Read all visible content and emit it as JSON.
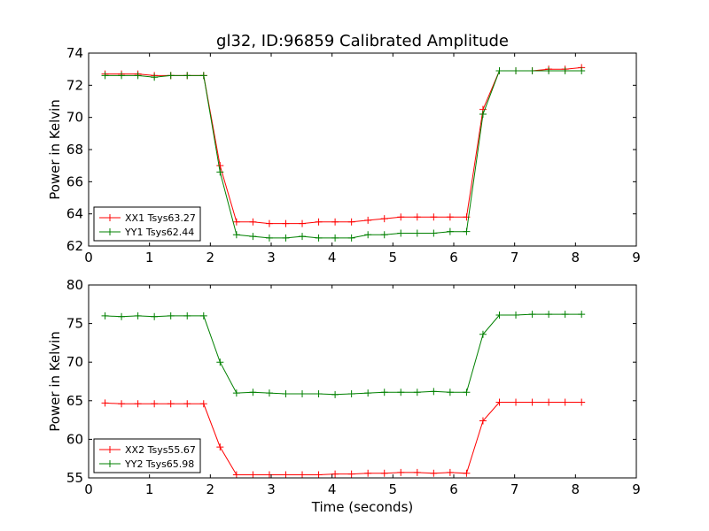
{
  "chart_data": {
    "title": "gl32, ID:96859 Calibrated Amplitude",
    "xlabel": "Time (seconds)",
    "colors": {
      "red": "#ff0000",
      "green": "#008000"
    },
    "panels": [
      {
        "type": "line",
        "ylabel": "Power in Kelvin",
        "xlim": [
          0,
          9
        ],
        "ylim": [
          62,
          74
        ],
        "xticks": [
          0,
          1,
          2,
          3,
          4,
          5,
          6,
          7,
          8,
          9
        ],
        "yticks": [
          62,
          64,
          66,
          68,
          70,
          72,
          74
        ],
        "x": [
          0.27,
          0.54,
          0.81,
          1.08,
          1.35,
          1.62,
          1.89,
          2.16,
          2.43,
          2.7,
          2.97,
          3.24,
          3.51,
          3.78,
          4.05,
          4.32,
          4.59,
          4.86,
          5.13,
          5.4,
          5.67,
          5.94,
          6.21,
          6.48,
          6.75,
          7.02,
          7.29,
          7.56,
          7.83,
          8.1
        ],
        "legend_position": "lower-left",
        "series": [
          {
            "name": "XX1 Tsys63.27",
            "color": "#ff0000",
            "values": [
              72.7,
              72.7,
              72.7,
              72.6,
              72.6,
              72.6,
              72.6,
              67.0,
              63.5,
              63.5,
              63.4,
              63.4,
              63.4,
              63.5,
              63.5,
              63.5,
              63.6,
              63.7,
              63.8,
              63.8,
              63.8,
              63.8,
              63.8,
              70.5,
              72.9,
              72.9,
              72.9,
              73.0,
              73.0,
              73.1
            ]
          },
          {
            "name": "YY1 Tsys62.44",
            "color": "#008000",
            "values": [
              72.6,
              72.6,
              72.6,
              72.5,
              72.6,
              72.6,
              72.6,
              66.6,
              62.7,
              62.6,
              62.5,
              62.5,
              62.6,
              62.5,
              62.5,
              62.5,
              62.7,
              62.7,
              62.8,
              62.8,
              62.8,
              62.9,
              62.9,
              70.2,
              72.9,
              72.9,
              72.9,
              72.9,
              72.9,
              72.9
            ]
          }
        ]
      },
      {
        "type": "line",
        "ylabel": "Power in Kelvin",
        "xlabel": "Time (seconds)",
        "xlim": [
          0,
          9
        ],
        "ylim": [
          55,
          80
        ],
        "xticks": [
          0,
          1,
          2,
          3,
          4,
          5,
          6,
          7,
          8,
          9
        ],
        "yticks": [
          55,
          60,
          65,
          70,
          75,
          80
        ],
        "x": [
          0.27,
          0.54,
          0.81,
          1.08,
          1.35,
          1.62,
          1.89,
          2.16,
          2.43,
          2.7,
          2.97,
          3.24,
          3.51,
          3.78,
          4.05,
          4.32,
          4.59,
          4.86,
          5.13,
          5.4,
          5.67,
          5.94,
          6.21,
          6.48,
          6.75,
          7.02,
          7.29,
          7.56,
          7.83,
          8.1
        ],
        "legend_position": "lower-left",
        "series": [
          {
            "name": "XX2 Tsys55.67",
            "color": "#ff0000",
            "values": [
              64.7,
              64.6,
              64.6,
              64.6,
              64.6,
              64.6,
              64.6,
              59.0,
              55.4,
              55.4,
              55.4,
              55.4,
              55.4,
              55.4,
              55.5,
              55.5,
              55.6,
              55.6,
              55.7,
              55.7,
              55.6,
              55.7,
              55.6,
              62.4,
              64.8,
              64.8,
              64.8,
              64.8,
              64.8,
              64.8
            ]
          },
          {
            "name": "YY2 Tsys65.98",
            "color": "#008000",
            "values": [
              76.0,
              75.9,
              76.0,
              75.9,
              76.0,
              76.0,
              76.0,
              70.0,
              66.0,
              66.1,
              66.0,
              65.9,
              65.9,
              65.9,
              65.8,
              65.9,
              66.0,
              66.1,
              66.1,
              66.1,
              66.2,
              66.1,
              66.1,
              73.6,
              76.1,
              76.1,
              76.2,
              76.2,
              76.2,
              76.2
            ]
          }
        ]
      }
    ]
  }
}
